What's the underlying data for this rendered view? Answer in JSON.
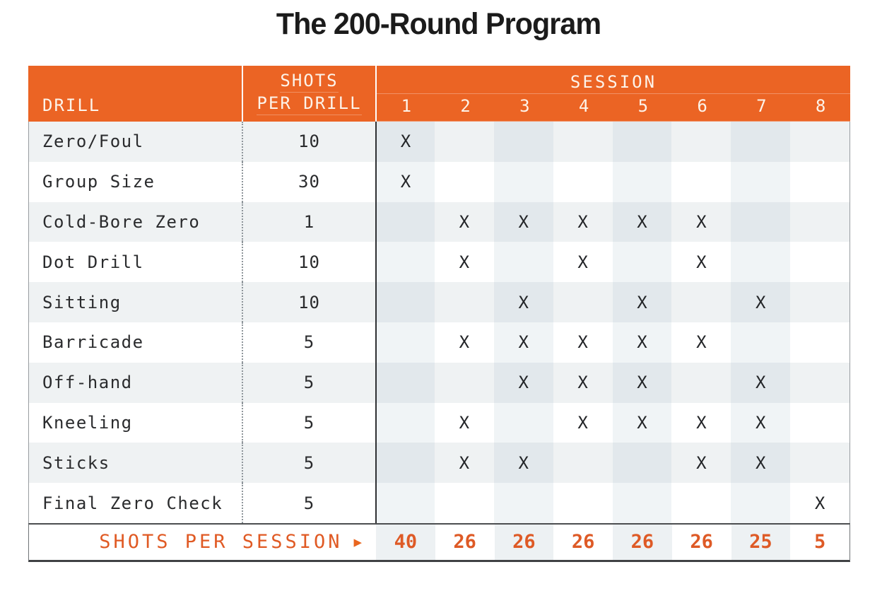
{
  "title": "The 200-Round Program",
  "header": {
    "drill": "DRILL",
    "shots_line1": "SHOTS",
    "shots_line2": "PER DRILL",
    "session": "SESSION",
    "session_numbers": [
      "1",
      "2",
      "3",
      "4",
      "5",
      "6",
      "7",
      "8"
    ]
  },
  "mark": "X",
  "rows": [
    {
      "drill": "Zero/Foul",
      "shots": "10",
      "sessions": [
        1
      ]
    },
    {
      "drill": "Group Size",
      "shots": "30",
      "sessions": [
        1
      ]
    },
    {
      "drill": "Cold-Bore Zero",
      "shots": "1",
      "sessions": [
        2,
        3,
        4,
        5,
        6
      ]
    },
    {
      "drill": "Dot Drill",
      "shots": "10",
      "sessions": [
        2,
        4,
        6
      ]
    },
    {
      "drill": "Sitting",
      "shots": "10",
      "sessions": [
        3,
        5,
        7
      ]
    },
    {
      "drill": "Barricade",
      "shots": "5",
      "sessions": [
        2,
        3,
        4,
        5,
        6
      ]
    },
    {
      "drill": "Off-hand",
      "shots": "5",
      "sessions": [
        3,
        4,
        5,
        7
      ]
    },
    {
      "drill": "Kneeling",
      "shots": "5",
      "sessions": [
        2,
        4,
        5,
        6,
        7
      ]
    },
    {
      "drill": "Sticks",
      "shots": "5",
      "sessions": [
        2,
        3,
        6,
        7
      ]
    },
    {
      "drill": "Final Zero Check",
      "shots": "5",
      "sessions": [
        8
      ]
    }
  ],
  "footer": {
    "label": "SHOTS PER SESSION",
    "arrow": "▶",
    "values": [
      "40",
      "26",
      "26",
      "26",
      "26",
      "26",
      "25",
      "5"
    ]
  },
  "colors": {
    "header_orange": "#EB6424",
    "footer_orange": "#E05A24",
    "row_gray": "#EFF2F3",
    "stripe_on_gray": "#E2E8EC",
    "stripe_on_white": "#F0F4F6",
    "mark_color": "#232528"
  },
  "chart_data": {
    "type": "table",
    "title": "The 200-Round Program",
    "columns": [
      "DRILL",
      "SHOTS PER DRILL",
      "SESSION 1",
      "SESSION 2",
      "SESSION 3",
      "SESSION 4",
      "SESSION 5",
      "SESSION 6",
      "SESSION 7",
      "SESSION 8"
    ],
    "rows": [
      [
        "Zero/Foul",
        10,
        "X",
        "",
        "",
        "",
        "",
        "",
        "",
        ""
      ],
      [
        "Group Size",
        30,
        "X",
        "",
        "",
        "",
        "",
        "",
        "",
        ""
      ],
      [
        "Cold-Bore Zero",
        1,
        "",
        "X",
        "X",
        "X",
        "X",
        "X",
        "",
        ""
      ],
      [
        "Dot Drill",
        10,
        "",
        "X",
        "",
        "X",
        "",
        "X",
        "",
        ""
      ],
      [
        "Sitting",
        10,
        "",
        "",
        "X",
        "",
        "X",
        "",
        "X",
        ""
      ],
      [
        "Barricade",
        5,
        "",
        "X",
        "X",
        "X",
        "X",
        "X",
        "",
        ""
      ],
      [
        "Off-hand",
        5,
        "",
        "",
        "X",
        "X",
        "X",
        "",
        "X",
        ""
      ],
      [
        "Kneeling",
        5,
        "",
        "X",
        "",
        "X",
        "X",
        "X",
        "X",
        ""
      ],
      [
        "Sticks",
        5,
        "",
        "X",
        "X",
        "",
        "",
        "X",
        "X",
        ""
      ],
      [
        "Final Zero Check",
        5,
        "",
        "",
        "",
        "",
        "",
        "",
        "",
        "X"
      ]
    ],
    "totals_row": [
      "SHOTS PER SESSION",
      null,
      40,
      26,
      26,
      26,
      26,
      26,
      25,
      5
    ]
  }
}
